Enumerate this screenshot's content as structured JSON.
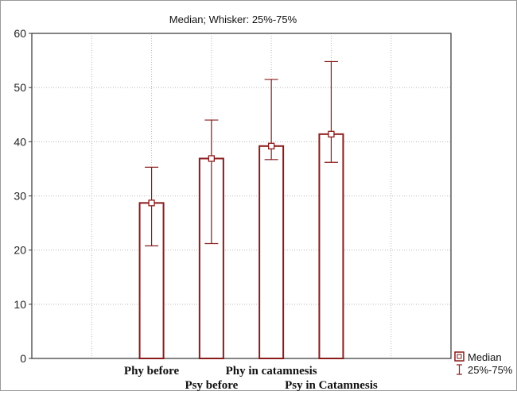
{
  "chart_data": {
    "type": "bar",
    "title": "Median; Whisker: 25%-75%",
    "categories": [
      "Phy before",
      "Psy before",
      "Phy in catamnesis",
      "Psy in Catamnesis"
    ],
    "median": [
      28.7,
      36.9,
      39.2,
      41.4
    ],
    "q25": [
      20.8,
      21.2,
      36.7,
      36.2
    ],
    "q75": [
      35.3,
      44.0,
      51.5,
      54.8
    ],
    "ylim": [
      0,
      60
    ],
    "yticks": [
      0,
      10,
      20,
      30,
      40,
      50,
      60
    ],
    "grid": true,
    "legend": {
      "placement": "bottom-right",
      "entries": [
        "Median",
        "25%-75%"
      ]
    },
    "colors": {
      "bar_edge": "#8b1a1a",
      "whisker": "#8b1a1a",
      "grid": "#b8b8b8",
      "axis": "#333333"
    }
  }
}
